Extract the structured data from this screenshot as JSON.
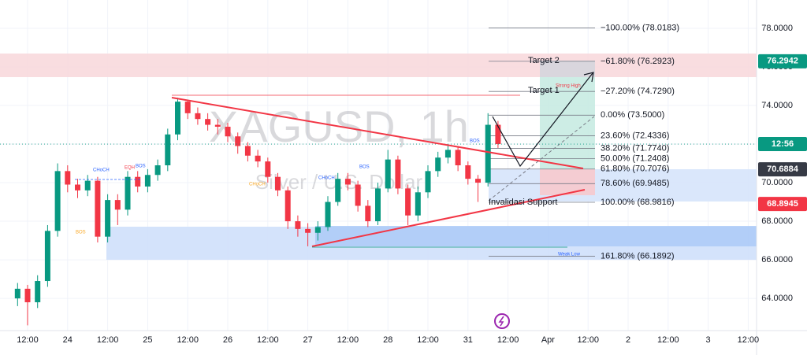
{
  "chart_data": {
    "type": "candlestick",
    "title": "XAGUSD, 1h",
    "subtitle": "Silver / U.S. Dollar",
    "x": [
      9,
      12,
      15,
      18,
      21,
      24,
      27,
      30,
      33,
      36,
      39,
      42,
      45,
      48,
      51,
      54,
      57,
      60,
      63,
      66,
      69,
      72,
      75,
      78,
      81,
      84,
      87,
      90,
      93,
      96,
      99,
      102,
      105,
      108,
      111,
      114,
      117,
      120,
      123,
      126,
      129,
      132,
      135,
      138,
      141,
      144,
      147,
      150,
      153
    ],
    "open": [
      64.0,
      64.5,
      63.8,
      64.9,
      67.5,
      70.6,
      69.9,
      69.6,
      70.1,
      67.2,
      69.1,
      68.6,
      70.3,
      69.8,
      70.4,
      70.9,
      72.5,
      74.2,
      73.6,
      73.3,
      73.0,
      72.9,
      72.4,
      71.9,
      71.4,
      71.1,
      70.3,
      69.6,
      68.0,
      67.6,
      67.4,
      67.7,
      69.0,
      70.2,
      69.9,
      68.8,
      68.0,
      69.7,
      71.2,
      69.7,
      68.3,
      69.5,
      70.6,
      71.3,
      71.7,
      70.9,
      70.2,
      70.0,
      73.0
    ],
    "high": [
      64.8,
      64.7,
      65.2,
      67.8,
      71.0,
      70.9,
      70.2,
      70.4,
      70.3,
      69.4,
      69.4,
      70.6,
      70.6,
      70.7,
      71.2,
      72.8,
      74.4,
      74.3,
      73.9,
      73.6,
      73.3,
      73.1,
      72.6,
      72.1,
      71.7,
      71.3,
      70.5,
      69.8,
      68.3,
      67.9,
      68.0,
      69.3,
      70.5,
      70.5,
      70.1,
      69.1,
      70.0,
      71.7,
      71.4,
      69.9,
      69.8,
      70.9,
      71.6,
      72.0,
      71.9,
      71.1,
      70.4,
      73.6,
      73.2
    ],
    "low": [
      63.6,
      62.6,
      63.5,
      64.6,
      67.2,
      69.5,
      69.2,
      69.3,
      66.9,
      66.9,
      67.8,
      68.3,
      69.5,
      69.5,
      70.1,
      70.6,
      72.2,
      73.3,
      73.0,
      72.7,
      72.5,
      72.1,
      71.5,
      71.1,
      70.8,
      70.0,
      69.3,
      67.6,
      67.2,
      66.7,
      67.0,
      67.5,
      68.8,
      69.6,
      68.5,
      67.7,
      67.8,
      69.5,
      69.4,
      67.8,
      68.0,
      69.2,
      70.3,
      71.0,
      70.6,
      69.9,
      69.0,
      69.8,
      71.8
    ],
    "close": [
      64.5,
      63.8,
      64.9,
      67.5,
      70.6,
      69.9,
      69.6,
      70.1,
      67.2,
      69.1,
      68.6,
      70.3,
      69.8,
      70.4,
      70.9,
      72.5,
      74.2,
      73.6,
      73.3,
      73.0,
      72.9,
      72.4,
      71.9,
      71.4,
      71.1,
      70.3,
      69.6,
      68.0,
      67.6,
      67.4,
      67.7,
      69.0,
      70.2,
      69.9,
      68.8,
      68.0,
      69.7,
      71.2,
      69.7,
      68.3,
      69.5,
      70.6,
      71.3,
      71.7,
      70.9,
      70.2,
      70.0,
      73.0,
      72.0
    ],
    "up_color": "#089981",
    "down_color": "#f23645",
    "xlim": [
      3.73,
      230.5
    ],
    "xticks": [
      {
        "value": 12,
        "label": "12:00"
      },
      {
        "value": 24,
        "label": "24"
      },
      {
        "value": 36,
        "label": "12:00"
      },
      {
        "value": 48,
        "label": "25"
      },
      {
        "value": 60,
        "label": "12:00"
      },
      {
        "value": 72,
        "label": "26"
      },
      {
        "value": 84,
        "label": "12:00"
      },
      {
        "value": 96,
        "label": "27"
      },
      {
        "value": 108,
        "label": "12:00"
      },
      {
        "value": 120,
        "label": "28"
      },
      {
        "value": 132,
        "label": "12:00"
      },
      {
        "value": 144,
        "label": "31"
      },
      {
        "value": 156,
        "label": "12:00"
      },
      {
        "value": 168,
        "label": "Apr"
      },
      {
        "value": 180,
        "label": "12:00"
      },
      {
        "value": 192,
        "label": "2"
      },
      {
        "value": 204,
        "label": "12:00"
      },
      {
        "value": 216,
        "label": "3"
      },
      {
        "value": 228,
        "label": "12:00"
      }
    ],
    "ylim": [
      62.33,
      79.47
    ],
    "yticks": [
      {
        "value": 64,
        "label": "64.0000"
      },
      {
        "value": 66,
        "label": "66.0000"
      },
      {
        "value": 68,
        "label": "68.0000"
      },
      {
        "value": 70,
        "label": "70.0000"
      },
      {
        "value": 72,
        "label": "72.0000"
      },
      {
        "value": 74,
        "label": "74.0000"
      },
      {
        "value": 76,
        "label": "76.0000"
      },
      {
        "value": 78,
        "label": "78.0000"
      }
    ],
    "grid": true,
    "fib_levels": [
      {
        "value": 78.0183,
        "label": "−100.00% (78.0183)"
      },
      {
        "value": 76.2923,
        "label": "−61.80% (76.2923)"
      },
      {
        "value": 74.729,
        "label": "−27.20% (74.7290)"
      },
      {
        "value": 73.5,
        "label": "0.00% (73.5000)"
      },
      {
        "value": 72.4336,
        "label": "23.60% (72.4336)"
      },
      {
        "value": 71.774,
        "label": "38.20% (71.7740)"
      },
      {
        "value": 71.2408,
        "label": "50.00% (71.2408)"
      },
      {
        "value": 70.7076,
        "label": "61.80% (70.7076)"
      },
      {
        "value": 69.9485,
        "label": "78.60% (69.9485)"
      },
      {
        "value": 68.9816,
        "label": "100.00% (68.9816)"
      },
      {
        "value": 66.1892,
        "label": "161.80% (66.1892)"
      }
    ],
    "price_badges": [
      {
        "value": 76.2942,
        "color": "#089981"
      },
      {
        "value": 70.6884,
        "color": "#363a45"
      },
      {
        "value": 68.8945,
        "color": "#f23645"
      }
    ],
    "countdown": "12:56",
    "annotations": [
      "Target 2",
      "Target 1",
      "Strong High",
      "Invalidasi Support",
      "Weak Low",
      "CHoCH",
      "EQH",
      "BOS",
      "BOS",
      "CHoCH",
      "CHoCH",
      "BOS",
      "BOS"
    ]
  }
}
